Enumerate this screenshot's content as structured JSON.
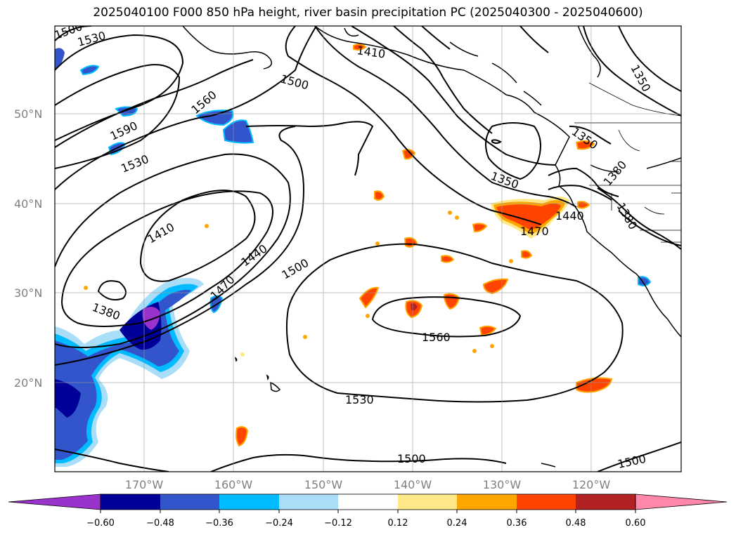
{
  "title": "2025040100 F000 850 hPa height, river basin precipitation PC (2025040300 - 2025040600)",
  "lat_labels": [
    "50°N",
    "40°N",
    "30°N",
    "20°N"
  ],
  "lon_labels": [
    "170°W",
    "160°W",
    "150°W",
    "140°W",
    "130°W",
    "120°W"
  ],
  "contour_labels": [
    "1500",
    "1530",
    "1410",
    "1500",
    "1350",
    "1560",
    "1590",
    "1530",
    "1350",
    "1350",
    "1380",
    "1440",
    "1470",
    "1380",
    "1410",
    "1440",
    "1500",
    "1470",
    "1380",
    "1560",
    "1530",
    "1500",
    "1500"
  ],
  "colorbar": {
    "ticks": [
      "−0.60",
      "−0.48",
      "−0.36",
      "−0.24",
      "−0.12",
      "0.12",
      "0.24",
      "0.36",
      "0.48",
      "0.60"
    ],
    "colors": [
      "#9933cc",
      "#000099",
      "#3355cc",
      "#00bbff",
      "#aaddf8",
      "#ffffff",
      "#ffe888",
      "#ffa500",
      "#ff4400",
      "#b22222",
      "#ff88aa"
    ]
  }
}
